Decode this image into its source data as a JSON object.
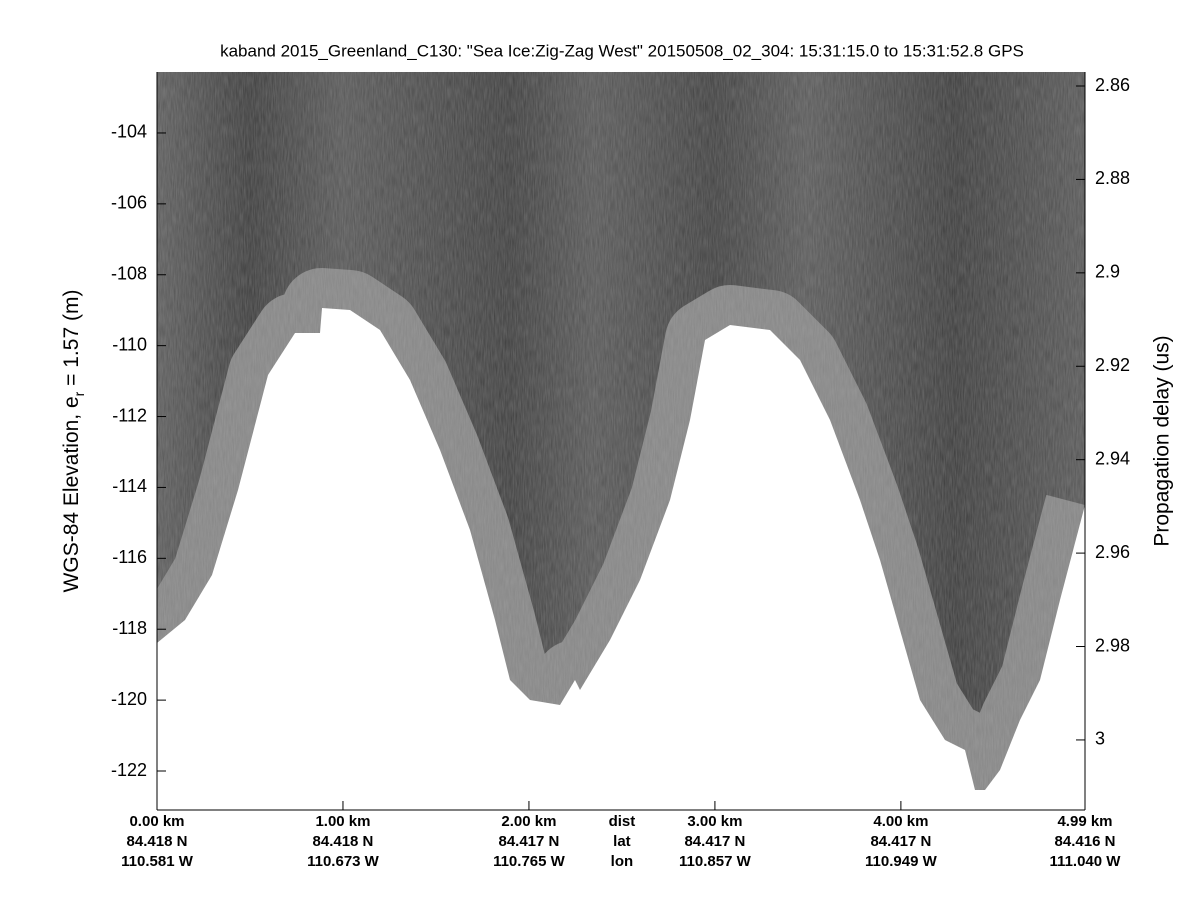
{
  "chart_data": {
    "type": "echogram",
    "title": "kaband 2015_Greenland_C130: \"Sea Ice:Zig-Zag West\"  20150508_02_304: 15:31:15.0 to 15:31:52.8 GPS",
    "ylabel": "WGS-84 Elevation, e",
    "ylabel_subscript": "r",
    "ylabel_suffix": " = 1.57 (m)",
    "y2label": "Propagation delay (us)",
    "ylim": [
      -123.1,
      -102.28
    ],
    "yticks": [
      -122,
      -120,
      -118,
      -116,
      -114,
      -112,
      -110,
      -108,
      -106,
      -104
    ],
    "y2lim": [
      3.015,
      2.857
    ],
    "y2ticks": [
      2.86,
      2.88,
      2.9,
      2.92,
      2.94,
      2.96,
      2.98,
      3
    ],
    "xlim": [
      0,
      4.99
    ],
    "xticks": [
      {
        "value": 0,
        "label": "0.00 km"
      },
      {
        "value": 1,
        "label": "1.00 km"
      },
      {
        "value": 2,
        "label": "2.00 km"
      },
      {
        "value": 3,
        "label": "3.00 km"
      },
      {
        "value": 4,
        "label": "4.00 km"
      },
      {
        "value": 4.99,
        "label": "4.99 km"
      }
    ],
    "lat_labels": [
      "84.418 N",
      "84.418 N",
      "84.417 N",
      "84.417 N",
      "84.417 N",
      "84.416 N"
    ],
    "lon_labels": [
      "110.581 W",
      "110.673 W",
      "110.765 W",
      "110.857 W",
      "110.949 W",
      "111.040 W"
    ],
    "row_labels": [
      "dist",
      "lat",
      "lon"
    ]
  }
}
